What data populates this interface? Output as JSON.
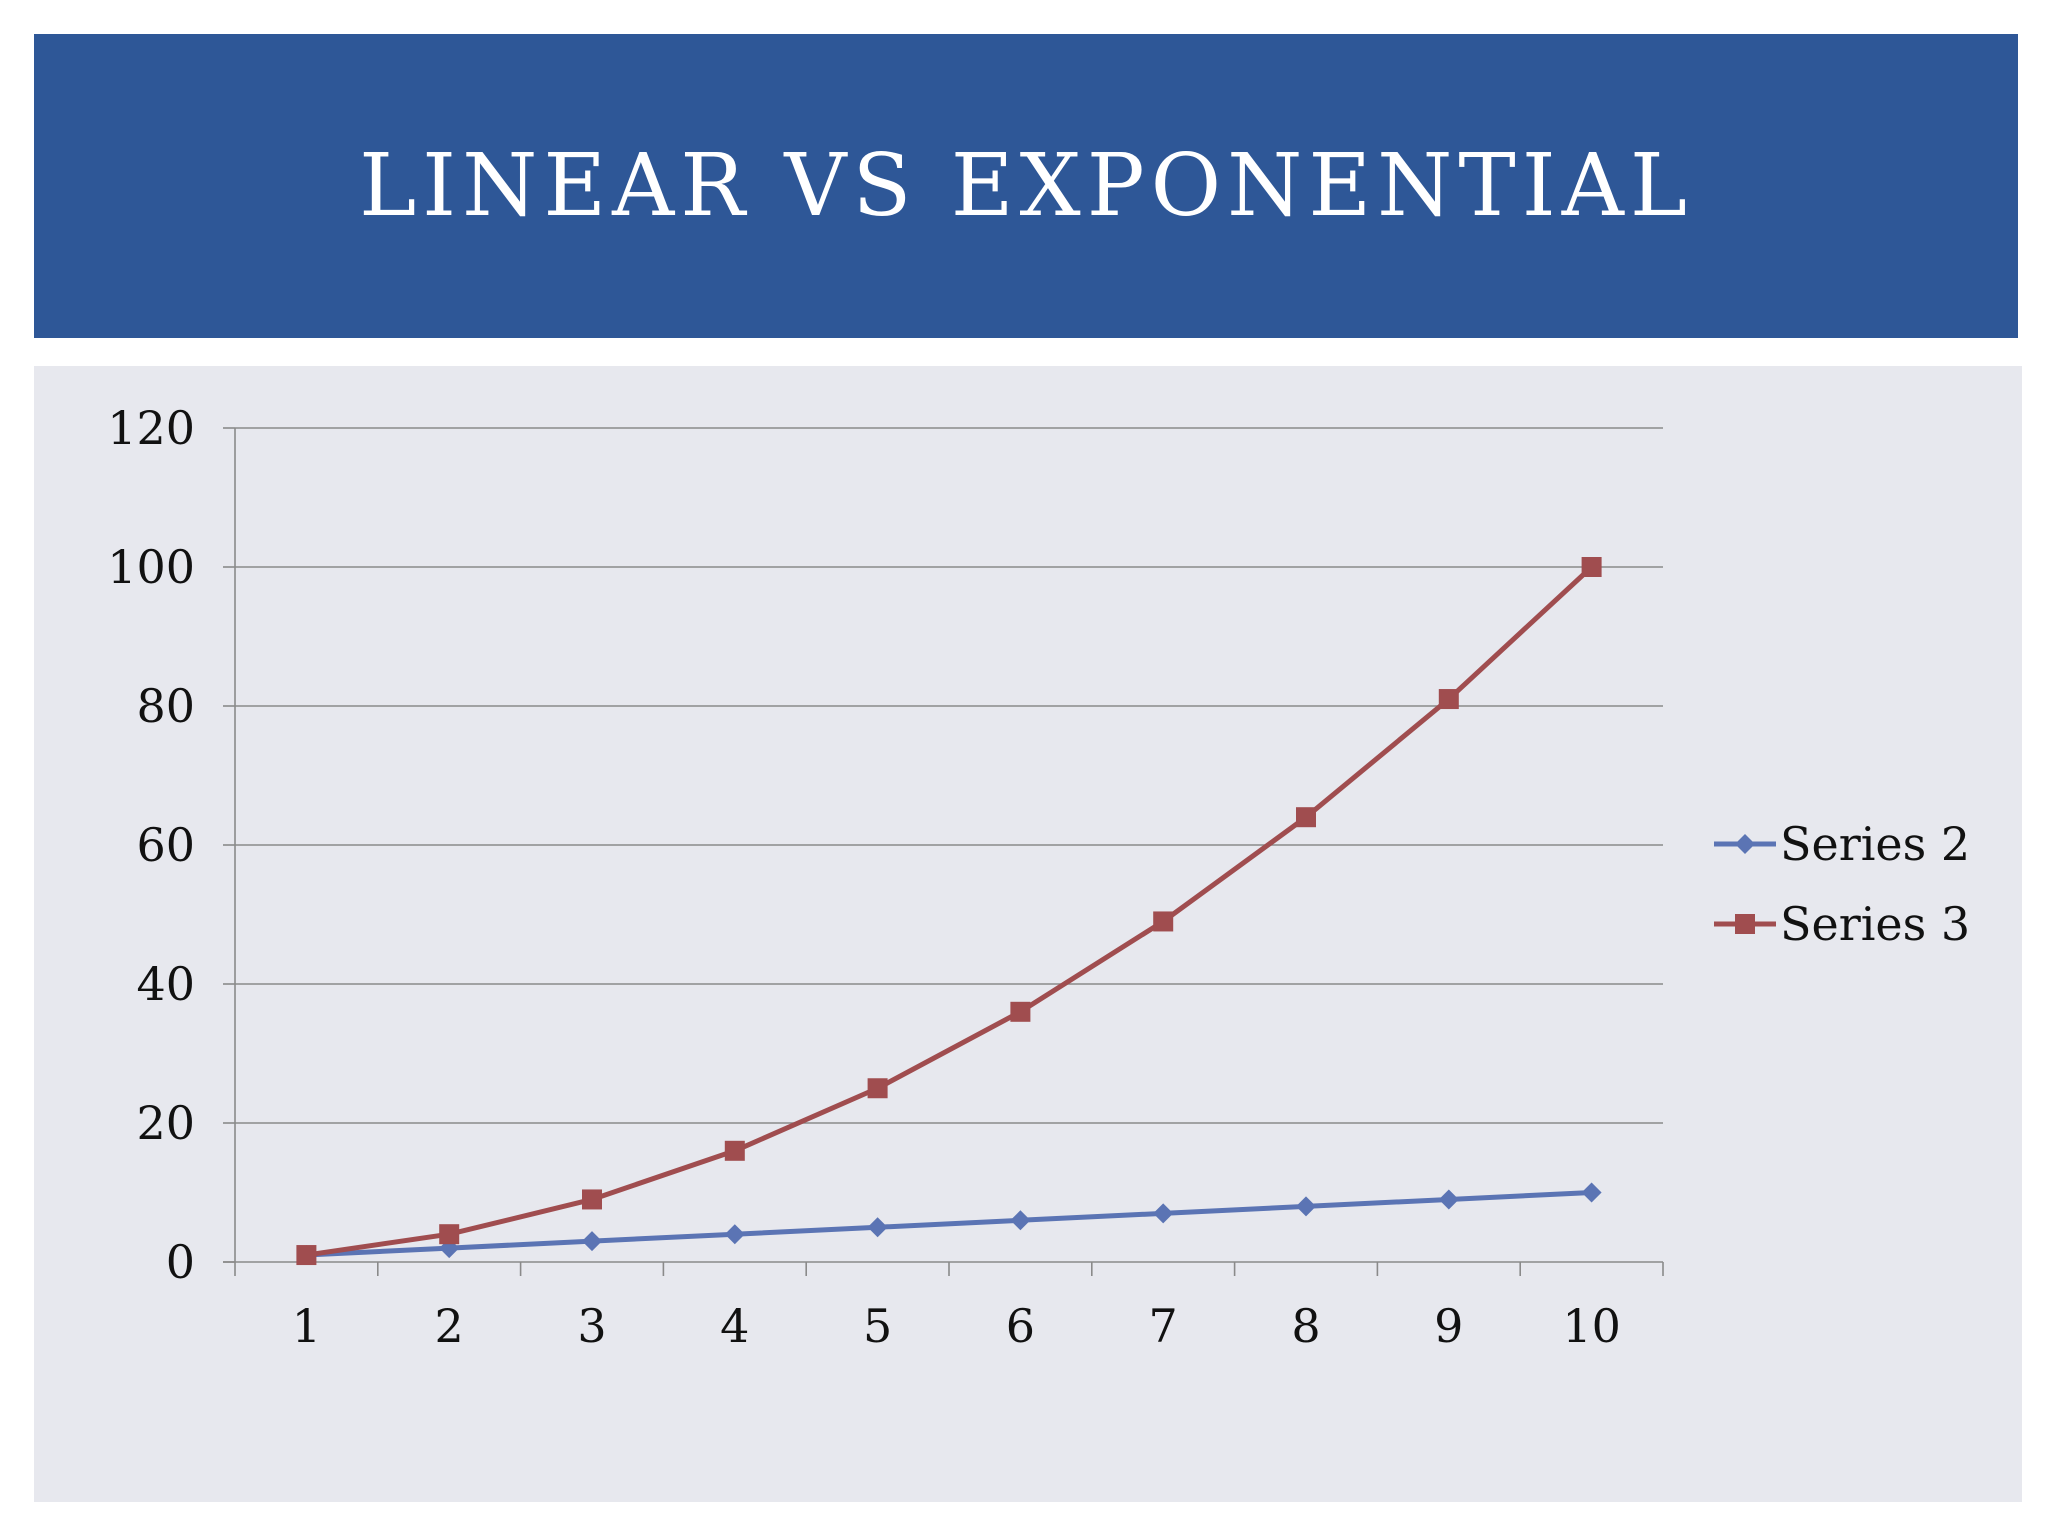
{
  "slide": {
    "title": "LINEAR VS EXPONENTIAL"
  },
  "colors": {
    "title_bar": "#2e5797",
    "panel": "#e7e8ee",
    "series2": "#5b74b4",
    "series3": "#a04d4f",
    "grid": "#8a8a8a"
  },
  "chart_data": {
    "type": "line",
    "x": [
      1,
      2,
      3,
      4,
      5,
      6,
      7,
      8,
      9,
      10
    ],
    "ylim": [
      0,
      120
    ],
    "yticks": [
      0,
      20,
      40,
      60,
      80,
      100,
      120
    ],
    "grid": true,
    "legend": "right",
    "series": [
      {
        "name": "Series 2",
        "marker": "diamond",
        "values": [
          1,
          2,
          3,
          4,
          5,
          6,
          7,
          8,
          9,
          10
        ]
      },
      {
        "name": "Series 3",
        "marker": "square",
        "values": [
          1,
          4,
          9,
          16,
          25,
          36,
          49,
          64,
          81,
          100
        ]
      }
    ]
  }
}
